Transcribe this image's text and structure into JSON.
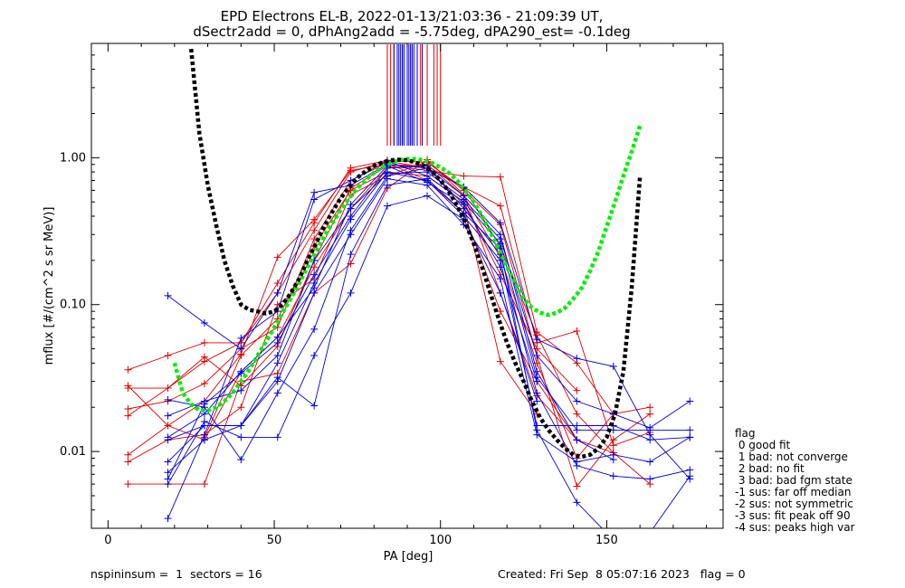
{
  "chart_data": {
    "type": "line",
    "title_line1": "EPD Electrons EL-B, 2022-01-13/21:03:36 - 21:09:39 UT,",
    "title_line2": "dSectr2add = 0, dPhAng2add = -5.75deg, dPA290_est=  -0.1deg",
    "xlabel": "PA [deg]",
    "ylabel": "mflux [#/(cm^2 s sr MeV)]",
    "xlim": [
      -5,
      185
    ],
    "ylim": [
      0.003,
      6.0
    ],
    "y_scale": "log",
    "grid": false,
    "x_ticks": [
      0,
      50,
      100,
      150
    ],
    "x_tick_labels": [
      "0",
      "50",
      "100",
      "150"
    ],
    "y_ticks": [
      0.01,
      0.1,
      1.0
    ],
    "y_tick_labels": [
      "0.01",
      "0.10",
      "1.00"
    ],
    "red_sector_pa_markers": [
      84,
      85,
      86,
      89,
      90,
      91,
      93,
      94,
      96,
      98,
      99,
      100
    ],
    "blue_sector_pa_markers": [
      86,
      87,
      87.5,
      88,
      88.5,
      89,
      90,
      90.5,
      91,
      91.5,
      92,
      93,
      94.5
    ],
    "red_series": [
      {
        "x": [
          6,
          18,
          29,
          40,
          51,
          62,
          73,
          84,
          96,
          107,
          118,
          129,
          141,
          152
        ],
        "y": [
          0.036,
          0.045,
          0.055,
          0.055,
          0.14,
          0.36,
          0.85,
          0.96,
          0.93,
          0.62,
          0.25,
          0.062,
          0.018,
          0.0098
        ]
      },
      {
        "x": [
          6,
          18,
          29,
          40,
          51,
          62,
          73,
          84,
          96,
          107,
          118,
          129,
          141,
          152,
          163
        ],
        "y": [
          0.027,
          0.027,
          0.044,
          0.028,
          0.052,
          0.2,
          0.62,
          0.88,
          0.82,
          0.75,
          0.74,
          0.065,
          0.04,
          0.018,
          0.02
        ]
      },
      {
        "x": [
          6,
          18,
          29,
          40,
          51,
          62,
          73,
          84,
          96,
          107,
          118,
          129,
          141,
          152,
          163
        ],
        "y": [
          0.0095,
          0.015,
          0.022,
          0.046,
          0.21,
          0.38,
          0.82,
          0.9,
          0.88,
          0.63,
          0.47,
          0.055,
          0.066,
          0.011,
          0.0135
        ]
      },
      {
        "x": [
          6,
          18,
          29,
          40,
          51,
          62,
          73,
          84,
          96,
          107,
          118,
          129,
          141,
          152,
          163
        ],
        "y": [
          0.0085,
          0.012,
          0.013,
          0.02,
          0.1,
          0.15,
          0.56,
          0.75,
          0.94,
          0.6,
          0.35,
          0.045,
          0.0058,
          0.012,
          0.018
        ]
      },
      {
        "x": [
          6,
          18,
          29,
          40,
          51,
          62,
          73,
          84,
          96,
          107,
          118,
          129,
          141,
          152,
          163
        ],
        "y": [
          0.006,
          0.006,
          0.006,
          0.03,
          0.034,
          0.12,
          0.19,
          0.62,
          0.97,
          0.56,
          0.12,
          0.024,
          0.012,
          0.0098,
          0.006
        ]
      },
      {
        "x": [
          6,
          18,
          29,
          40,
          51,
          62,
          73,
          84,
          96,
          107,
          118,
          129,
          141,
          152
        ],
        "y": [
          0.028,
          0.015,
          0.012,
          0.035,
          0.06,
          0.18,
          0.45,
          0.85,
          0.9,
          0.55,
          0.21,
          0.04,
          0.009,
          0.018
        ]
      },
      {
        "x": [
          6,
          18,
          29,
          40,
          51,
          62,
          73,
          84,
          96,
          107,
          118,
          129,
          141
        ],
        "y": [
          0.0195,
          0.022,
          0.029,
          0.05,
          0.07,
          0.28,
          0.7,
          0.92,
          0.7,
          0.42,
          0.09,
          0.03,
          0.012
        ]
      },
      {
        "x": [
          6,
          18,
          29,
          40,
          51,
          62,
          73,
          84,
          96,
          107,
          118,
          129
        ],
        "y": [
          0.0175,
          0.027,
          0.041,
          0.055,
          0.12,
          0.32,
          0.8,
          0.95,
          0.85,
          0.48,
          0.041,
          0.018
        ]
      },
      {
        "x": [
          29,
          40,
          51,
          62,
          73,
          84,
          96,
          107,
          118,
          129,
          141
        ],
        "y": [
          0.0125,
          0.045,
          0.08,
          0.25,
          0.6,
          0.8,
          0.75,
          0.5,
          0.16,
          0.05,
          0.026
        ]
      }
    ],
    "blue_series": [
      {
        "x": [
          18,
          29,
          40,
          51,
          62,
          73,
          84,
          96,
          107,
          118,
          129,
          141,
          152,
          163,
          175
        ],
        "y": [
          0.115,
          0.075,
          0.05,
          0.12,
          0.58,
          0.65,
          0.9,
          0.85,
          0.63,
          0.36,
          0.058,
          0.043,
          0.038,
          0.013,
          0.0065
        ]
      },
      {
        "x": [
          18,
          29,
          40,
          51,
          62,
          73,
          84,
          96,
          107,
          118,
          129,
          141,
          152,
          163,
          175
        ],
        "y": [
          0.0035,
          0.013,
          0.059,
          0.09,
          0.52,
          0.7,
          0.95,
          0.75,
          0.5,
          0.26,
          0.032,
          0.014,
          0.014,
          0.014,
          0.014
        ]
      },
      {
        "x": [
          18,
          29,
          40,
          51,
          62,
          73,
          84,
          96,
          107,
          118,
          129,
          141,
          152,
          163,
          175
        ],
        "y": [
          0.0065,
          0.021,
          0.034,
          0.055,
          0.16,
          0.4,
          0.85,
          0.88,
          0.45,
          0.22,
          0.025,
          0.008,
          0.0068,
          0.0065,
          0.0075
        ]
      },
      {
        "x": [
          18,
          29,
          40,
          51,
          62,
          73,
          84,
          96,
          107,
          118,
          129,
          141,
          152,
          163,
          175
        ],
        "y": [
          0.0072,
          0.012,
          0.015,
          0.04,
          0.14,
          0.38,
          0.8,
          0.7,
          0.4,
          0.2,
          0.015,
          0.015,
          0.015,
          0.012,
          0.0125
        ]
      },
      {
        "x": [
          18,
          29,
          40,
          51,
          62,
          73,
          84,
          96,
          107,
          118,
          129,
          141,
          152,
          163,
          175
        ],
        "y": [
          0.012,
          0.015,
          0.015,
          0.03,
          0.12,
          0.3,
          0.72,
          0.65,
          0.35,
          0.15,
          0.013,
          0.0085,
          0.0095,
          0.0085,
          0.0125
        ]
      },
      {
        "x": [
          18,
          29,
          40,
          51,
          62,
          73,
          84,
          96,
          107,
          118,
          129,
          141,
          152,
          163,
          175
        ],
        "y": [
          0.0175,
          0.022,
          0.026,
          0.045,
          0.2,
          0.45,
          0.78,
          0.8,
          0.52,
          0.28,
          0.045,
          0.022,
          0.018,
          0.0145,
          0.022
        ]
      },
      {
        "x": [
          18,
          29,
          40,
          51,
          62,
          73,
          84,
          96,
          107,
          118,
          129,
          141,
          152
        ],
        "y": [
          0.0225,
          0.02,
          0.0088,
          0.025,
          0.068,
          0.32,
          0.75,
          0.85,
          0.55,
          0.3,
          0.035,
          0.012,
          0.0088
        ]
      },
      {
        "x": [
          18,
          29,
          40,
          51,
          62,
          73,
          84,
          96,
          107,
          118,
          129,
          141,
          152
        ],
        "y": [
          0.0085,
          0.015,
          0.015,
          0.032,
          0.0205,
          0.22,
          0.65,
          0.72,
          0.42,
          0.24,
          0.014,
          0.0045,
          0.0025
        ]
      },
      {
        "x": [
          18,
          29,
          40,
          51,
          62,
          73,
          84,
          96,
          107,
          118,
          129
        ],
        "y": [
          0.006,
          0.016,
          0.0125,
          0.0125,
          0.045,
          0.12,
          0.47,
          0.55,
          0.38,
          0.12,
          0.022
        ]
      },
      {
        "x": [
          18,
          29,
          40,
          51,
          62,
          73,
          84,
          96,
          107,
          118,
          129
        ],
        "y": [
          0.0125,
          0.018,
          0.035,
          0.06,
          0.13,
          0.48,
          0.88,
          0.68,
          0.48,
          0.18,
          0.03
        ]
      },
      {
        "x": [
          152,
          163,
          175
        ],
        "y": [
          0.0025,
          0.0028,
          0.0068
        ]
      }
    ],
    "black_fit_curve": {
      "x": [
        25,
        27.5,
        30,
        32.5,
        35,
        37.5,
        40,
        42.5,
        45,
        47.5,
        50,
        52.5,
        55,
        57.5,
        60,
        62.5,
        65,
        67.5,
        70,
        72.5,
        75,
        77.5,
        80,
        82.5,
        85,
        87.5,
        90,
        92.5,
        95,
        97.5,
        100,
        102.5,
        105,
        107.5,
        110,
        112.5,
        115,
        117.5,
        120,
        122.5,
        125,
        127.5,
        130,
        132.5,
        135,
        137.5,
        140,
        142.5,
        145,
        147.5,
        150,
        152.5,
        155,
        157.5,
        160
      ],
      "y": [
        5.5,
        1.45,
        0.65,
        0.35,
        0.2,
        0.135,
        0.1,
        0.092,
        0.09,
        0.087,
        0.09,
        0.1,
        0.12,
        0.15,
        0.2,
        0.26,
        0.34,
        0.43,
        0.53,
        0.63,
        0.73,
        0.81,
        0.88,
        0.93,
        0.96,
        0.97,
        0.96,
        0.93,
        0.88,
        0.8,
        0.7,
        0.59,
        0.47,
        0.36,
        0.26,
        0.18,
        0.12,
        0.08,
        0.055,
        0.04,
        0.03,
        0.022,
        0.017,
        0.014,
        0.012,
        0.0105,
        0.0095,
        0.0092,
        0.0095,
        0.0105,
        0.0125,
        0.018,
        0.035,
        0.13,
        0.75
      ]
    },
    "green_fit_curve": {
      "x": [
        20,
        22.5,
        25,
        27.5,
        30,
        32.5,
        35,
        37.5,
        40,
        42.5,
        45,
        47.5,
        50,
        52.5,
        55,
        57.5,
        60,
        62.5,
        65,
        67.5,
        70,
        72.5,
        75,
        77.5,
        80,
        82.5,
        85,
        87.5,
        90,
        92.5,
        95,
        97.5,
        100,
        102.5,
        105,
        107.5,
        110,
        112.5,
        115,
        117.5,
        120,
        122.5,
        125,
        127.5,
        130,
        132.5,
        135,
        137.5,
        140,
        142.5,
        145,
        147.5,
        150,
        152.5,
        155,
        157.5,
        160
      ],
      "y": [
        0.04,
        0.025,
        0.021,
        0.019,
        0.019,
        0.02,
        0.022,
        0.025,
        0.03,
        0.036,
        0.045,
        0.056,
        0.07,
        0.088,
        0.11,
        0.14,
        0.18,
        0.23,
        0.29,
        0.36,
        0.44,
        0.53,
        0.62,
        0.71,
        0.79,
        0.86,
        0.92,
        0.96,
        0.98,
        0.98,
        0.96,
        0.92,
        0.86,
        0.79,
        0.7,
        0.6,
        0.5,
        0.4,
        0.31,
        0.24,
        0.18,
        0.14,
        0.11,
        0.095,
        0.088,
        0.085,
        0.088,
        0.095,
        0.11,
        0.13,
        0.17,
        0.23,
        0.34,
        0.5,
        0.75,
        1.1,
        1.65
      ]
    }
  },
  "legend": {
    "header": "flag",
    "items": [
      " 0 good fit",
      " 1 bad: not converge",
      " 2 bad: no fit",
      " 3 bad: bad fgm state",
      "-1 sus: far off median",
      "-2 sus: not symmetric",
      "-3 sus: fit peak off 90",
      "-4 sus: peaks high var"
    ]
  },
  "footer": {
    "left": "nspininsum =  1  sectors = 16",
    "right": "Created: Fri Sep  8 05:07:16 2023   flag = 0"
  },
  "colors": {
    "red": "#e00000",
    "blue": "#0000e0",
    "black_fit": "#000000",
    "green_fit": "#00ee00"
  }
}
